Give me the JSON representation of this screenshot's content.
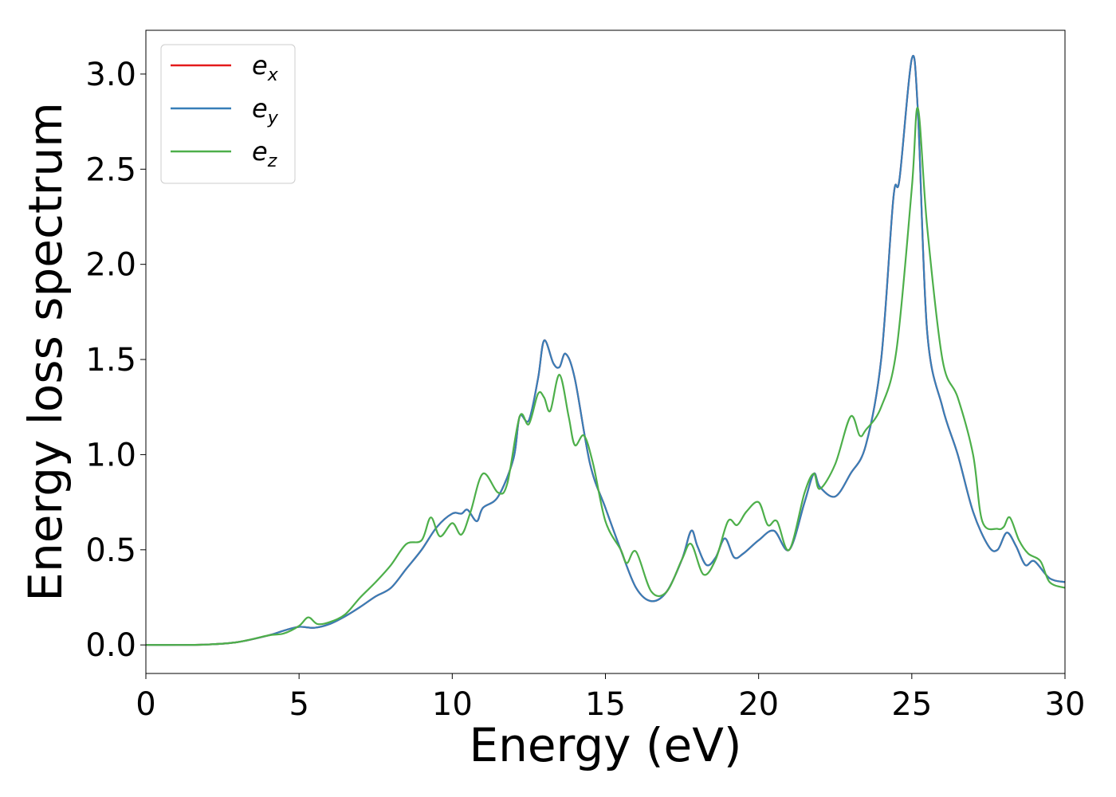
{
  "chart_data": {
    "type": "line",
    "title": "",
    "xlabel": "Energy (eV)",
    "ylabel": "Energy loss spectrum",
    "xlim": [
      0,
      30
    ],
    "ylim": [
      -0.15,
      3.23
    ],
    "xticks": [
      0,
      5,
      10,
      15,
      20,
      25,
      30
    ],
    "xtick_labels": [
      "0",
      "5",
      "10",
      "15",
      "20",
      "25",
      "30"
    ],
    "yticks": [
      0.0,
      0.5,
      1.0,
      1.5,
      2.0,
      2.5,
      3.0
    ],
    "ytick_labels": [
      "0.0",
      "0.5",
      "1.0",
      "1.5",
      "2.0",
      "2.5",
      "3.0"
    ],
    "grid": false,
    "legend_position": "top-left",
    "series": [
      {
        "name": "e",
        "subscript": "x",
        "color": "#e41a1c",
        "points": [
          [
            0,
            0
          ],
          [
            1,
            0
          ],
          [
            2,
            0.002
          ],
          [
            3,
            0.015
          ],
          [
            4,
            0.05
          ],
          [
            4.5,
            0.075
          ],
          [
            5,
            0.095
          ],
          [
            5.5,
            0.09
          ],
          [
            6,
            0.11
          ],
          [
            6.5,
            0.15
          ],
          [
            7,
            0.2
          ],
          [
            7.5,
            0.255
          ],
          [
            8,
            0.3
          ],
          [
            8.5,
            0.4
          ],
          [
            9,
            0.5
          ],
          [
            9.5,
            0.62
          ],
          [
            10,
            0.69
          ],
          [
            10.3,
            0.69
          ],
          [
            10.5,
            0.71
          ],
          [
            10.8,
            0.65
          ],
          [
            11,
            0.72
          ],
          [
            11.5,
            0.78
          ],
          [
            12,
            0.98
          ],
          [
            12.2,
            1.2
          ],
          [
            12.5,
            1.18
          ],
          [
            12.8,
            1.4
          ],
          [
            13,
            1.6
          ],
          [
            13.3,
            1.48
          ],
          [
            13.5,
            1.46
          ],
          [
            13.7,
            1.53
          ],
          [
            14,
            1.4
          ],
          [
            14.5,
            0.95
          ],
          [
            15,
            0.72
          ],
          [
            15.5,
            0.5
          ],
          [
            16,
            0.3
          ],
          [
            16.5,
            0.23
          ],
          [
            17,
            0.28
          ],
          [
            17.5,
            0.45
          ],
          [
            17.8,
            0.6
          ],
          [
            18,
            0.52
          ],
          [
            18.3,
            0.42
          ],
          [
            18.6,
            0.46
          ],
          [
            18.9,
            0.56
          ],
          [
            19.2,
            0.46
          ],
          [
            19.5,
            0.48
          ],
          [
            20,
            0.55
          ],
          [
            20.5,
            0.6
          ],
          [
            21,
            0.5
          ],
          [
            21.5,
            0.75
          ],
          [
            21.8,
            0.9
          ],
          [
            22,
            0.83
          ],
          [
            22.5,
            0.78
          ],
          [
            23,
            0.9
          ],
          [
            23.5,
            1.05
          ],
          [
            24,
            1.5
          ],
          [
            24.4,
            2.35
          ],
          [
            24.6,
            2.45
          ],
          [
            25,
            3.08
          ],
          [
            25.2,
            2.8
          ],
          [
            25.5,
            1.65
          ],
          [
            26,
            1.25
          ],
          [
            26.5,
            1.0
          ],
          [
            27,
            0.7
          ],
          [
            27.5,
            0.52
          ],
          [
            27.8,
            0.5
          ],
          [
            28.1,
            0.59
          ],
          [
            28.4,
            0.52
          ],
          [
            28.7,
            0.42
          ],
          [
            29,
            0.44
          ],
          [
            29.5,
            0.35
          ],
          [
            30,
            0.33
          ]
        ]
      },
      {
        "name": "e",
        "subscript": "y",
        "color": "#377eb8",
        "points": [
          [
            0,
            0
          ],
          [
            1,
            0
          ],
          [
            2,
            0.002
          ],
          [
            3,
            0.015
          ],
          [
            4,
            0.05
          ],
          [
            4.5,
            0.075
          ],
          [
            5,
            0.095
          ],
          [
            5.5,
            0.09
          ],
          [
            6,
            0.11
          ],
          [
            6.5,
            0.15
          ],
          [
            7,
            0.2
          ],
          [
            7.5,
            0.255
          ],
          [
            8,
            0.3
          ],
          [
            8.5,
            0.4
          ],
          [
            9,
            0.5
          ],
          [
            9.5,
            0.62
          ],
          [
            10,
            0.69
          ],
          [
            10.3,
            0.69
          ],
          [
            10.5,
            0.71
          ],
          [
            10.8,
            0.65
          ],
          [
            11,
            0.72
          ],
          [
            11.5,
            0.78
          ],
          [
            12,
            0.98
          ],
          [
            12.2,
            1.2
          ],
          [
            12.5,
            1.18
          ],
          [
            12.8,
            1.4
          ],
          [
            13,
            1.6
          ],
          [
            13.3,
            1.48
          ],
          [
            13.5,
            1.46
          ],
          [
            13.7,
            1.53
          ],
          [
            14,
            1.4
          ],
          [
            14.5,
            0.95
          ],
          [
            15,
            0.72
          ],
          [
            15.5,
            0.5
          ],
          [
            16,
            0.3
          ],
          [
            16.5,
            0.23
          ],
          [
            17,
            0.28
          ],
          [
            17.5,
            0.45
          ],
          [
            17.8,
            0.6
          ],
          [
            18,
            0.52
          ],
          [
            18.3,
            0.42
          ],
          [
            18.6,
            0.46
          ],
          [
            18.9,
            0.56
          ],
          [
            19.2,
            0.46
          ],
          [
            19.5,
            0.48
          ],
          [
            20,
            0.55
          ],
          [
            20.5,
            0.6
          ],
          [
            21,
            0.5
          ],
          [
            21.5,
            0.75
          ],
          [
            21.8,
            0.9
          ],
          [
            22,
            0.83
          ],
          [
            22.5,
            0.78
          ],
          [
            23,
            0.9
          ],
          [
            23.5,
            1.05
          ],
          [
            24,
            1.5
          ],
          [
            24.4,
            2.35
          ],
          [
            24.6,
            2.45
          ],
          [
            25,
            3.08
          ],
          [
            25.2,
            2.8
          ],
          [
            25.5,
            1.65
          ],
          [
            26,
            1.25
          ],
          [
            26.5,
            1.0
          ],
          [
            27,
            0.7
          ],
          [
            27.5,
            0.52
          ],
          [
            27.8,
            0.5
          ],
          [
            28.1,
            0.59
          ],
          [
            28.4,
            0.52
          ],
          [
            28.7,
            0.42
          ],
          [
            29,
            0.44
          ],
          [
            29.5,
            0.35
          ],
          [
            30,
            0.33
          ]
        ]
      },
      {
        "name": "e",
        "subscript": "z",
        "color": "#4daf4a",
        "points": [
          [
            0,
            0
          ],
          [
            1,
            0
          ],
          [
            2,
            0.002
          ],
          [
            3,
            0.015
          ],
          [
            4,
            0.05
          ],
          [
            4.5,
            0.06
          ],
          [
            5,
            0.1
          ],
          [
            5.3,
            0.145
          ],
          [
            5.6,
            0.11
          ],
          [
            6,
            0.12
          ],
          [
            6.5,
            0.16
          ],
          [
            7,
            0.25
          ],
          [
            7.5,
            0.33
          ],
          [
            8,
            0.42
          ],
          [
            8.5,
            0.53
          ],
          [
            9,
            0.55
          ],
          [
            9.3,
            0.67
          ],
          [
            9.6,
            0.57
          ],
          [
            10,
            0.64
          ],
          [
            10.3,
            0.58
          ],
          [
            10.6,
            0.7
          ],
          [
            11,
            0.9
          ],
          [
            11.5,
            0.8
          ],
          [
            11.8,
            0.85
          ],
          [
            12.2,
            1.2
          ],
          [
            12.5,
            1.16
          ],
          [
            12.8,
            1.32
          ],
          [
            13,
            1.3
          ],
          [
            13.2,
            1.23
          ],
          [
            13.5,
            1.42
          ],
          [
            13.8,
            1.2
          ],
          [
            14,
            1.05
          ],
          [
            14.3,
            1.1
          ],
          [
            14.6,
            0.95
          ],
          [
            15,
            0.65
          ],
          [
            15.5,
            0.5
          ],
          [
            15.7,
            0.43
          ],
          [
            16,
            0.49
          ],
          [
            16.5,
            0.28
          ],
          [
            17,
            0.28
          ],
          [
            17.5,
            0.45
          ],
          [
            17.8,
            0.53
          ],
          [
            18.2,
            0.37
          ],
          [
            18.6,
            0.45
          ],
          [
            19,
            0.65
          ],
          [
            19.3,
            0.63
          ],
          [
            19.6,
            0.7
          ],
          [
            20,
            0.75
          ],
          [
            20.3,
            0.63
          ],
          [
            20.6,
            0.65
          ],
          [
            21,
            0.5
          ],
          [
            21.5,
            0.8
          ],
          [
            21.8,
            0.9
          ],
          [
            22,
            0.82
          ],
          [
            22.5,
            0.95
          ],
          [
            23,
            1.2
          ],
          [
            23.3,
            1.1
          ],
          [
            23.5,
            1.13
          ],
          [
            24,
            1.25
          ],
          [
            24.5,
            1.55
          ],
          [
            25,
            2.4
          ],
          [
            25.2,
            2.82
          ],
          [
            25.5,
            2.2
          ],
          [
            26,
            1.5
          ],
          [
            26.5,
            1.3
          ],
          [
            27,
            1.0
          ],
          [
            27.3,
            0.65
          ],
          [
            27.8,
            0.61
          ],
          [
            28,
            0.62
          ],
          [
            28.2,
            0.67
          ],
          [
            28.5,
            0.55
          ],
          [
            28.8,
            0.48
          ],
          [
            29.2,
            0.44
          ],
          [
            29.5,
            0.33
          ],
          [
            30,
            0.3
          ]
        ]
      }
    ]
  }
}
